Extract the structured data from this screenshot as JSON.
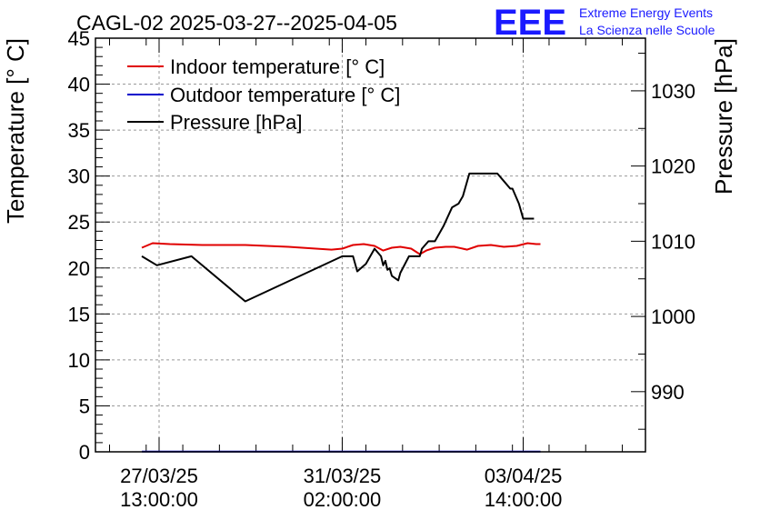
{
  "header": {
    "title": "CAGL-02 2025-03-27--2025-04-05",
    "logo_text": "EEE",
    "org_line1": "Extreme Energy Events",
    "org_line2": "La Scienza nelle Scuole"
  },
  "colors": {
    "indoor": "#e00000",
    "outdoor": "#0000cc",
    "pressure": "#000000",
    "logo": "#1a1aff"
  },
  "chart_data": {
    "type": "line",
    "title": "CAGL-02 2025-03-27--2025-04-05",
    "ylabel": "Temperature [° C]",
    "y2label": "Pressure [hPa]",
    "ylim": [
      0,
      45
    ],
    "y2lim": [
      982,
      1037
    ],
    "x_ticks": [
      {
        "line1": "27/03/25",
        "line2": "13:00:00",
        "hours": 0
      },
      {
        "line1": "31/03/25",
        "line2": "02:00:00",
        "hours": 85
      },
      {
        "line1": "03/04/25",
        "line2": "14:00:00",
        "hours": 169
      }
    ],
    "y_ticks": [
      0,
      5,
      10,
      15,
      20,
      25,
      30,
      35,
      40,
      45
    ],
    "y2_ticks": [
      990,
      1000,
      1010,
      1020,
      1030
    ],
    "grid": true,
    "legend_position": "top-left",
    "series": [
      {
        "name": "Indoor temperature [° C]",
        "axis": "left",
        "points": [
          [
            -8,
            22.2
          ],
          [
            -3,
            22.7
          ],
          [
            5,
            22.6
          ],
          [
            20,
            22.5
          ],
          [
            40,
            22.5
          ],
          [
            60,
            22.3
          ],
          [
            80,
            22.0
          ],
          [
            85,
            22.1
          ],
          [
            90,
            22.5
          ],
          [
            95,
            22.6
          ],
          [
            100,
            22.4
          ],
          [
            104,
            21.9
          ],
          [
            108,
            22.2
          ],
          [
            112,
            22.3
          ],
          [
            117,
            22.1
          ],
          [
            121,
            21.5
          ],
          [
            124,
            21.9
          ],
          [
            128,
            22.2
          ],
          [
            133,
            22.3
          ],
          [
            137,
            22.3
          ],
          [
            143,
            22.0
          ],
          [
            148,
            22.4
          ],
          [
            154,
            22.5
          ],
          [
            160,
            22.3
          ],
          [
            166,
            22.4
          ],
          [
            171,
            22.7
          ],
          [
            175,
            22.6
          ],
          [
            177,
            22.6
          ]
        ]
      },
      {
        "name": "Outdoor temperature [° C]",
        "axis": "left",
        "points": [
          [
            -8,
            0.02
          ],
          [
            177,
            0.02
          ]
        ]
      },
      {
        "name": "Pressure [hPa]",
        "axis": "right",
        "points": [
          [
            -8,
            1008.0
          ],
          [
            -1,
            1006.8
          ],
          [
            15,
            1008.0
          ],
          [
            40,
            1002.0
          ],
          [
            85,
            1008.0
          ],
          [
            90,
            1008.0
          ],
          [
            92,
            1006.0
          ],
          [
            96,
            1007.0
          ],
          [
            100,
            1009.0
          ],
          [
            103,
            1008.0
          ],
          [
            104,
            1006.8
          ],
          [
            105,
            1007.4
          ],
          [
            106,
            1006.2
          ],
          [
            107,
            1006.4
          ],
          [
            108,
            1005.4
          ],
          [
            111,
            1004.8
          ],
          [
            112,
            1005.8
          ],
          [
            116,
            1008.0
          ],
          [
            121,
            1008.0
          ],
          [
            122,
            1009.0
          ],
          [
            125,
            1010.0
          ],
          [
            128,
            1010.0
          ],
          [
            132,
            1012.0
          ],
          [
            136,
            1014.5
          ],
          [
            139,
            1015.0
          ],
          [
            141,
            1016.0
          ],
          [
            144,
            1019.0
          ],
          [
            153,
            1019.0
          ],
          [
            157,
            1019.0
          ],
          [
            160,
            1018.0
          ],
          [
            163,
            1017.0
          ],
          [
            164,
            1017.0
          ],
          [
            167,
            1015.0
          ],
          [
            169,
            1013.0
          ],
          [
            174,
            1013.0
          ]
        ]
      }
    ]
  }
}
